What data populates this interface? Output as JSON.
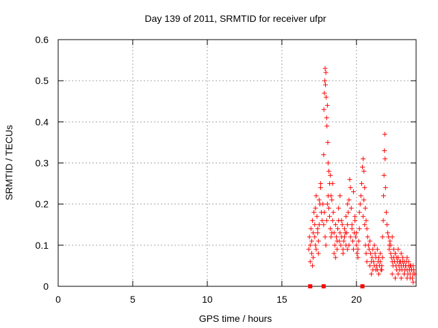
{
  "chart_data": {
    "type": "scatter",
    "title": "Day 139 of 2011, SRMTID for receiver ufpr",
    "xlabel": "GPS time / hours",
    "ylabel": "SRMTID / TECUs",
    "xlim": [
      0,
      24
    ],
    "ylim": [
      0,
      0.6
    ],
    "xticks": [
      0,
      5,
      10,
      15,
      20
    ],
    "yticks": [
      0,
      0.1,
      0.2,
      0.3,
      0.4,
      0.5,
      0.6
    ],
    "xtick_labels": [
      "0",
      "5",
      "10",
      "15",
      "20"
    ],
    "ytick_labels": [
      "0",
      "0.1",
      "0.2",
      "0.3",
      "0.4",
      "0.5",
      "0.6"
    ],
    "grid": true,
    "marker": "plus",
    "color": "#ff0000",
    "square_markers": [
      {
        "x": 16.9,
        "y": 0
      },
      {
        "x": 17.8,
        "y": 0
      },
      {
        "x": 20.4,
        "y": 0
      }
    ],
    "series": [
      {
        "name": "SRMTID",
        "x": [
          16.8,
          16.85,
          16.9,
          16.95,
          17.0,
          17.05,
          17.1,
          17.15,
          17.2,
          17.25,
          17.3,
          17.35,
          17.4,
          17.45,
          17.5,
          17.55,
          17.6,
          17.65,
          17.7,
          16.9,
          17.0,
          17.1,
          17.2,
          17.3,
          17.4,
          17.5,
          17.6,
          17.05,
          17.25,
          17.45,
          17.75,
          17.8,
          17.82,
          17.85,
          17.88,
          17.9,
          17.92,
          17.95,
          17.97,
          18.0,
          18.02,
          18.05,
          18.08,
          18.1,
          18.15,
          18.2,
          18.25,
          18.3,
          17.8,
          17.85,
          17.9,
          17.95,
          18.0,
          18.05,
          18.1,
          18.15,
          18.2,
          18.25,
          18.3,
          18.35,
          18.4,
          18.35,
          18.4,
          18.45,
          18.5,
          18.55,
          18.6,
          18.65,
          18.7,
          18.75,
          18.8,
          18.85,
          18.9,
          18.95,
          19.0,
          19.05,
          19.1,
          19.15,
          19.2,
          19.25,
          19.3,
          18.5,
          18.6,
          18.7,
          18.8,
          18.9,
          19.0,
          19.1,
          19.2,
          19.3,
          19.4,
          19.35,
          19.4,
          19.45,
          19.5,
          19.55,
          19.6,
          19.65,
          19.7,
          19.75,
          19.8,
          19.85,
          19.9,
          19.95,
          20.0,
          20.05,
          20.1,
          20.15,
          20.2,
          19.4,
          19.5,
          19.6,
          19.7,
          19.8,
          19.9,
          20.0,
          20.1,
          20.2,
          20.25,
          20.3,
          20.35,
          20.4,
          20.45,
          20.5,
          20.55,
          20.6,
          20.65,
          20.7,
          20.75,
          20.8,
          20.85,
          20.9,
          20.45,
          20.5,
          20.55,
          20.6,
          20.65,
          20.7,
          20.9,
          20.95,
          21.0,
          21.05,
          21.1,
          21.15,
          21.2,
          21.25,
          21.3,
          21.35,
          21.4,
          21.45,
          21.5,
          21.55,
          21.6,
          21.65,
          21.7,
          21.75,
          21.0,
          21.1,
          21.2,
          21.3,
          21.4,
          21.5,
          21.6,
          21.7,
          21.75,
          21.8,
          21.82,
          21.85,
          21.88,
          21.9,
          21.92,
          21.95,
          22.0,
          22.05,
          22.1,
          22.15,
          22.2,
          22.2,
          22.25,
          22.3,
          22.35,
          22.4,
          22.45,
          22.5,
          22.55,
          22.6,
          22.65,
          22.7,
          22.75,
          22.8,
          22.85,
          22.9,
          22.95,
          23.0,
          23.05,
          23.1,
          23.15,
          23.2,
          23.25,
          23.3,
          23.35,
          23.4,
          23.45,
          23.5,
          23.55,
          23.6,
          23.65,
          23.7,
          23.75,
          23.8,
          23.85,
          23.9,
          22.3,
          22.4,
          22.5,
          22.6,
          22.7,
          22.8,
          22.9,
          23.0,
          23.1,
          23.2,
          23.3,
          23.4,
          23.5,
          23.6,
          23.7,
          23.8,
          22.4,
          22.6,
          22.8,
          23.0,
          23.2,
          23.4,
          23.6,
          23.8
        ],
        "y": [
          0.09,
          0.12,
          0.1,
          0.14,
          0.11,
          0.16,
          0.13,
          0.18,
          0.15,
          0.19,
          0.22,
          0.17,
          0.13,
          0.11,
          0.15,
          0.2,
          0.24,
          0.18,
          0.16,
          0.06,
          0.08,
          0.07,
          0.12,
          0.09,
          0.14,
          0.21,
          0.25,
          0.05,
          0.1,
          0.08,
          0.2,
          0.32,
          0.43,
          0.47,
          0.5,
          0.53,
          0.49,
          0.52,
          0.46,
          0.41,
          0.39,
          0.44,
          0.35,
          0.3,
          0.28,
          0.25,
          0.27,
          0.22,
          0.15,
          0.18,
          0.12,
          0.1,
          0.16,
          0.2,
          0.22,
          0.19,
          0.17,
          0.14,
          0.12,
          0.13,
          0.16,
          0.21,
          0.25,
          0.18,
          0.13,
          0.1,
          0.15,
          0.12,
          0.09,
          0.14,
          0.16,
          0.11,
          0.13,
          0.1,
          0.12,
          0.15,
          0.09,
          0.11,
          0.14,
          0.13,
          0.1,
          0.08,
          0.07,
          0.11,
          0.19,
          0.22,
          0.16,
          0.08,
          0.12,
          0.17,
          0.2,
          0.13,
          0.15,
          0.18,
          0.21,
          0.26,
          0.24,
          0.19,
          0.14,
          0.11,
          0.09,
          0.13,
          0.16,
          0.12,
          0.1,
          0.08,
          0.07,
          0.11,
          0.14,
          0.09,
          0.1,
          0.12,
          0.15,
          0.23,
          0.17,
          0.13,
          0.09,
          0.18,
          0.2,
          0.22,
          0.25,
          0.29,
          0.31,
          0.28,
          0.24,
          0.19,
          0.16,
          0.14,
          0.12,
          0.1,
          0.09,
          0.11,
          0.17,
          0.21,
          0.15,
          0.1,
          0.08,
          0.06,
          0.05,
          0.08,
          0.06,
          0.07,
          0.04,
          0.06,
          0.05,
          0.08,
          0.07,
          0.05,
          0.04,
          0.06,
          0.07,
          0.05,
          0.06,
          0.04,
          0.05,
          0.07,
          0.03,
          0.09,
          0.1,
          0.04,
          0.09,
          0.03,
          0.08,
          0.04,
          0.12,
          0.16,
          0.22,
          0.27,
          0.33,
          0.37,
          0.31,
          0.24,
          0.18,
          0.15,
          0.13,
          0.12,
          0.1,
          0.09,
          0.11,
          0.08,
          0.07,
          0.06,
          0.05,
          0.07,
          0.06,
          0.08,
          0.05,
          0.04,
          0.06,
          0.07,
          0.05,
          0.04,
          0.06,
          0.05,
          0.04,
          0.06,
          0.05,
          0.03,
          0.04,
          0.05,
          0.06,
          0.04,
          0.03,
          0.05,
          0.04,
          0.03,
          0.05,
          0.04,
          0.02,
          0.03,
          0.04,
          0.03,
          0.1,
          0.12,
          0.09,
          0.08,
          0.07,
          0.09,
          0.06,
          0.08,
          0.07,
          0.06,
          0.05,
          0.07,
          0.06,
          0.05,
          0.04,
          0.05,
          0.03,
          0.02,
          0.03,
          0.02,
          0.03,
          0.02,
          0.02,
          0.01
        ]
      }
    ]
  }
}
